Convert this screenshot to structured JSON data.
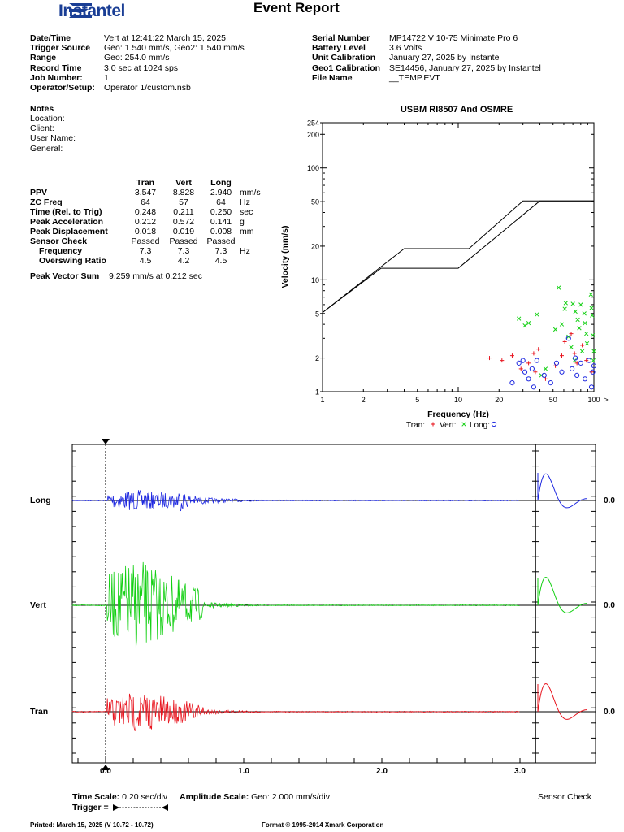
{
  "header": {
    "brand": "Instantel",
    "title": "Event Report"
  },
  "event_info": {
    "left": [
      {
        "label": "Date/Time",
        "value": "Vert at 12:41:22 March 15, 2025"
      },
      {
        "label": "Trigger Source",
        "value": "Geo: 1.540 mm/s, Geo2: 1.540 mm/s"
      },
      {
        "label": "Range",
        "value": "Geo: 254.0 mm/s"
      },
      {
        "label": "Record Time",
        "value": "3.0 sec at 1024 sps"
      },
      {
        "label": "Job Number:",
        "value": "1"
      },
      {
        "label": "Operator/Setup:",
        "value": "Operator 1/custom.nsb"
      }
    ],
    "right": [
      {
        "label": "Serial Number",
        "value": "MP14722 V 10-75 Minimate Pro 6"
      },
      {
        "label": "Battery Level",
        "value": "3.6 Volts"
      },
      {
        "label": "Unit Calibration",
        "value": "January 27, 2025 by Instantel"
      },
      {
        "label": "Geo1 Calibration",
        "value": "SE14456, January 27, 2025 by Instantel"
      },
      {
        "label": "File Name",
        "value": "__TEMP.EVT"
      }
    ]
  },
  "notes": {
    "heading": "Notes",
    "lines": [
      "Location:",
      "Client:",
      "User Name:",
      "General:"
    ]
  },
  "results": {
    "columns": [
      "Tran",
      "Vert",
      "Long"
    ],
    "rows": [
      {
        "label": "PPV",
        "values": [
          "3.547",
          "8.828",
          "2.940"
        ],
        "unit": "mm/s",
        "indent": false
      },
      {
        "label": "ZC Freq",
        "values": [
          "64",
          "57",
          "64"
        ],
        "unit": "Hz",
        "indent": false
      },
      {
        "label": "Time (Rel. to Trig)",
        "values": [
          "0.248",
          "0.211",
          "0.250"
        ],
        "unit": "sec",
        "indent": false
      },
      {
        "label": "Peak Acceleration",
        "values": [
          "0.212",
          "0.572",
          "0.141"
        ],
        "unit": "g",
        "indent": false
      },
      {
        "label": "Peak Displacement",
        "values": [
          "0.018",
          "0.019",
          "0.008"
        ],
        "unit": "mm",
        "indent": false
      },
      {
        "label": "Sensor Check",
        "values": [
          "Passed",
          "Passed",
          "Passed"
        ],
        "unit": "",
        "indent": false
      },
      {
        "label": "Frequency",
        "values": [
          "7.3",
          "7.3",
          "7.3"
        ],
        "unit": "Hz",
        "indent": true
      },
      {
        "label": "Overswing Ratio",
        "values": [
          "4.5",
          "4.2",
          "4.5"
        ],
        "unit": "",
        "indent": true
      }
    ],
    "pvs_label": "Peak Vector Sum",
    "pvs_value": "9.259 mm/s at 0.212 sec"
  },
  "chart_data": [
    {
      "type": "scatter",
      "title": "USBM RI8507 And OSMRE",
      "xlabel": "Frequency (Hz)",
      "ylabel": "Velocity (mm/s)",
      "x_scale": "log",
      "y_scale": "log",
      "xlim": [
        1,
        100
      ],
      "ylim": [
        1,
        254
      ],
      "x_ticks": [
        "1",
        "2",
        "5",
        "10",
        "20",
        "50",
        "100",
        ">"
      ],
      "y_ticks": [
        "254",
        "200",
        "100",
        "50",
        "20",
        "10",
        "5",
        "2",
        "1"
      ],
      "limit_curves": [
        {
          "points": [
            [
              1,
              5.1
            ],
            [
              2.7,
              12.7
            ],
            [
              10,
              12.7
            ],
            [
              40,
              50.8
            ],
            [
              100,
              50.8
            ]
          ]
        },
        {
          "points": [
            [
              1,
              5.1
            ],
            [
              4,
              19
            ],
            [
              12,
              19
            ],
            [
              30,
              50.8
            ],
            [
              100,
              50.8
            ]
          ]
        }
      ],
      "legend": {
        "items": [
          {
            "label": "Tran:",
            "marker": "+",
            "color": "#e8141e"
          },
          {
            "label": "Vert:",
            "marker": "x",
            "color": "#14d014"
          },
          {
            "label": "Long:",
            "marker": "o",
            "color": "#1e28e0"
          }
        ]
      },
      "series": [
        {
          "name": "Tran",
          "marker": "+",
          "color": "#e8141e",
          "points": [
            [
              17,
              2.0
            ],
            [
              21,
              1.9
            ],
            [
              25,
              2.1
            ],
            [
              29,
              1.6
            ],
            [
              33,
              1.8
            ],
            [
              36,
              2.2
            ],
            [
              37,
              1.5
            ],
            [
              39,
              2.4
            ],
            [
              44,
              1.3
            ],
            [
              52,
              1.7
            ],
            [
              58,
              2.1
            ],
            [
              61,
              2.8
            ],
            [
              68,
              3.3
            ],
            [
              72,
              2.2
            ],
            [
              75,
              1.8
            ],
            [
              82,
              2.6
            ],
            [
              88,
              1.9
            ],
            [
              96,
              1.5
            ]
          ]
        },
        {
          "name": "Vert",
          "marker": "x",
          "color": "#14d014",
          "points": [
            [
              28,
              4.5
            ],
            [
              31,
              3.9
            ],
            [
              33,
              4.1
            ],
            [
              38,
              4.9
            ],
            [
              41,
              1.4
            ],
            [
              44,
              1.6
            ],
            [
              52,
              3.6
            ],
            [
              55,
              8.5
            ],
            [
              58,
              4.0
            ],
            [
              61,
              5.5
            ],
            [
              62,
              6.2
            ],
            [
              65,
              3.1
            ],
            [
              68,
              2.5
            ],
            [
              70,
              6.1
            ],
            [
              72,
              1.9
            ],
            [
              73,
              5.2
            ],
            [
              76,
              4.4
            ],
            [
              78,
              3.7
            ],
            [
              80,
              6.0
            ],
            [
              82,
              2.3
            ],
            [
              85,
              5.0
            ],
            [
              86,
              4.1
            ],
            [
              88,
              3.3
            ],
            [
              89,
              2.7
            ],
            [
              95,
              7.4
            ],
            [
              96,
              5.6
            ],
            [
              97,
              4.8
            ],
            [
              98,
              3.2
            ],
            [
              99,
              1.9
            ],
            [
              100,
              2.3
            ]
          ]
        },
        {
          "name": "Long",
          "marker": "o",
          "color": "#1e28e0",
          "points": [
            [
              25,
              1.2
            ],
            [
              28,
              1.8
            ],
            [
              30,
              1.9
            ],
            [
              31,
              1.5
            ],
            [
              33,
              1.3
            ],
            [
              35,
              1.6
            ],
            [
              36,
              1.1
            ],
            [
              38,
              1.9
            ],
            [
              43,
              1.4
            ],
            [
              48,
              1.2
            ],
            [
              53,
              1.8
            ],
            [
              58,
              1.5
            ],
            [
              65,
              3.0
            ],
            [
              69,
              1.6
            ],
            [
              73,
              2.0
            ],
            [
              75,
              1.4
            ],
            [
              80,
              1.8
            ],
            [
              86,
              1.3
            ],
            [
              92,
              1.9
            ],
            [
              96,
              1.1
            ],
            [
              98,
              1.5
            ],
            [
              100,
              1.7
            ]
          ]
        }
      ]
    },
    {
      "type": "line",
      "channels": [
        {
          "name": "Long",
          "color": "#1e28e0",
          "value": "0.0"
        },
        {
          "name": "Vert",
          "color": "#14d014",
          "value": "0.0"
        },
        {
          "name": "Tran",
          "color": "#e8141e",
          "value": "0.0"
        }
      ],
      "x_ticks": [
        "0.0",
        "1.0",
        "2.0",
        "3.0"
      ],
      "xlim": [
        -0.2,
        3.0
      ],
      "time_scale_label": "Time Scale:",
      "time_scale_value": "0.20 sec/div",
      "amplitude_scale_label": "Amplitude Scale:",
      "amplitude_scale_value": "Geo: 2.000 mm/s/div",
      "trigger_label": "Trigger =",
      "sensor_check_label": "Sensor Check"
    }
  ],
  "footer": {
    "printed": "Printed: March 15, 2025 (V 10.72 - 10.72)",
    "format": "Format © 1995-2014 Xmark Corporation"
  }
}
